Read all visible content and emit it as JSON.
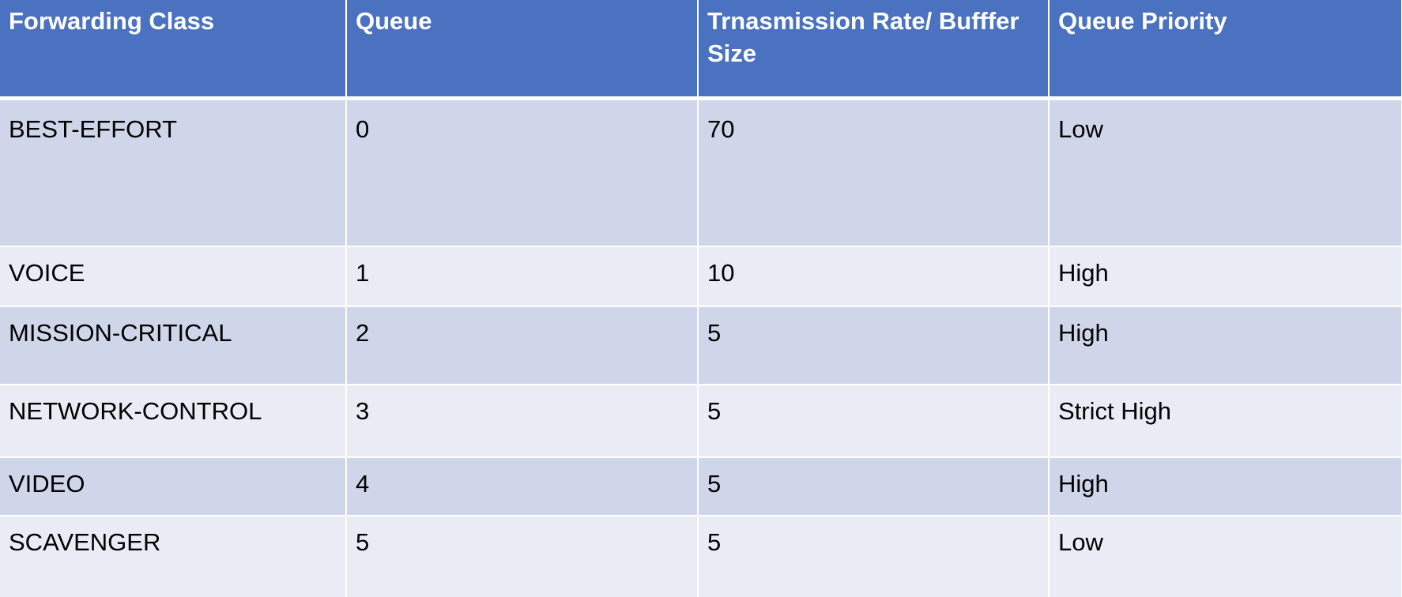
{
  "table": {
    "headers": [
      "Forwarding Class",
      "Queue",
      "Trnasmission Rate/ Bufffer Size",
      "Queue Priority"
    ],
    "rows": [
      [
        "BEST-EFFORT",
        "0",
        "70",
        "Low"
      ],
      [
        "VOICE",
        "1",
        "10",
        "High"
      ],
      [
        "MISSION-CRITICAL",
        "2",
        "5",
        "High"
      ],
      [
        "NETWORK-CONTROL",
        "3",
        "5",
        "Strict High"
      ],
      [
        "VIDEO",
        "4",
        "5",
        "High"
      ],
      [
        "SCAVENGER",
        "5",
        "5",
        "Low"
      ]
    ]
  },
  "colors": {
    "header_background": "#4a72c0",
    "row_band_dark": "#d0d6ea",
    "row_band_light": "#e9ecf5"
  }
}
